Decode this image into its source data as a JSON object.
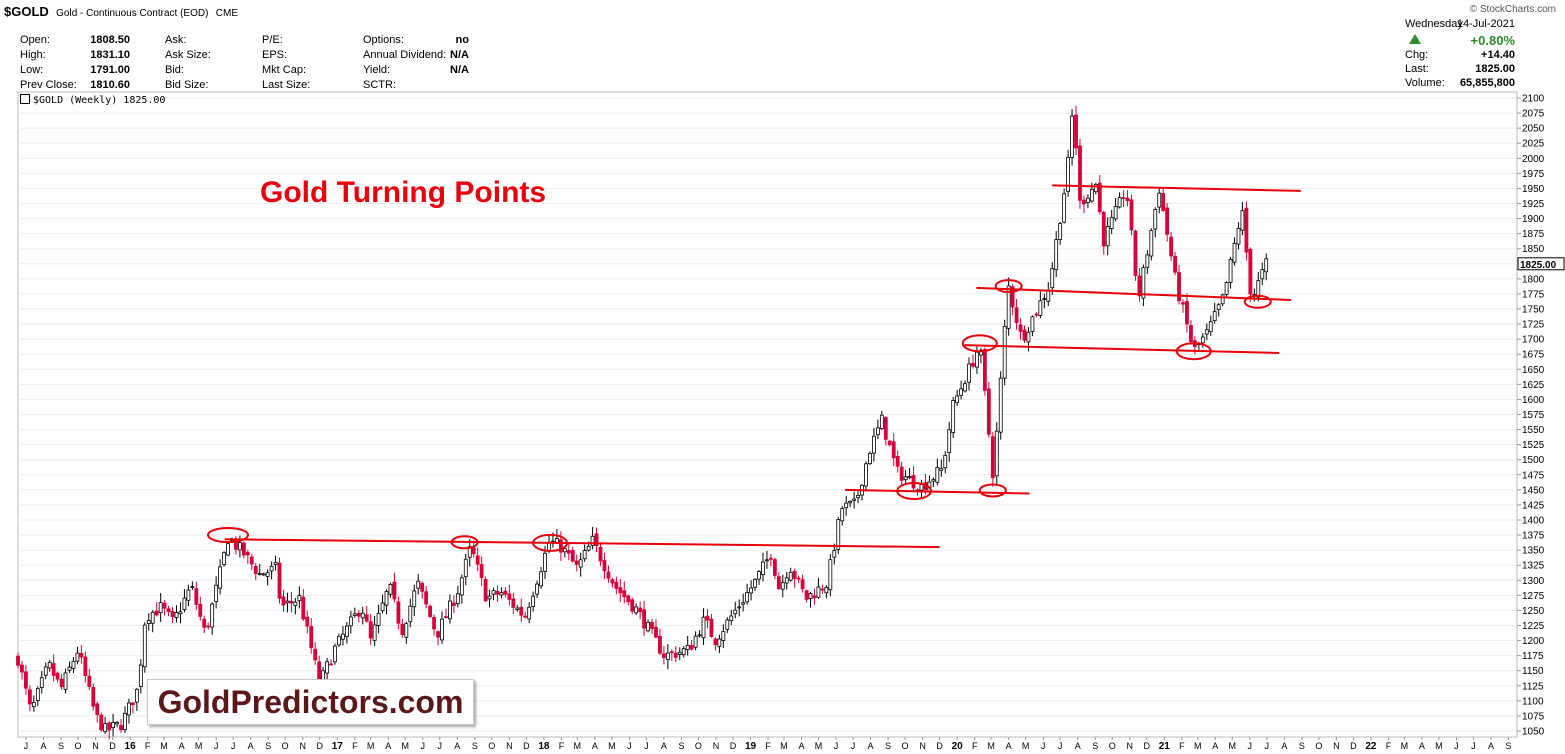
{
  "header": {
    "symbol": "$GOLD",
    "description": "Gold - Continuous Contract (EOD)",
    "exchange": "CME",
    "brand": "© StockCharts.com"
  },
  "quote": {
    "col1": [
      {
        "label": "Open:",
        "value": "1808.50"
      },
      {
        "label": "High:",
        "value": "1831.10"
      },
      {
        "label": "Low:",
        "value": "1791.00"
      },
      {
        "label": "Prev Close:",
        "value": "1810.60"
      }
    ],
    "col2": [
      "Ask:",
      "Ask Size:",
      "Bid:",
      "Bid Size:"
    ],
    "col3": [
      "P/E:",
      "EPS:",
      "Mkt Cap:",
      "Last Size:"
    ],
    "col4": [
      {
        "label": "Options:",
        "value": "no"
      },
      {
        "label": "Annual Dividend:",
        "value": "N/A"
      },
      {
        "label": "Yield:",
        "value": "N/A"
      },
      {
        "label": "SCTR:",
        "value": ""
      }
    ]
  },
  "summary": {
    "day": "Wednesday",
    "date": "14-Jul-2021",
    "change_pct": "+0.80%",
    "rows": [
      {
        "label": "Chg:",
        "value": "+14.40"
      },
      {
        "label": "Last:",
        "value": "1825.00"
      },
      {
        "label": "Volume:",
        "value": "65,855,800"
      }
    ],
    "up_color": "#2e8b2e"
  },
  "symbol_line": "$GOLD (Weekly) 1825.00",
  "annotation_title": "Gold Turning Points",
  "watermark": "GoldPredictors.com",
  "colors": {
    "up": "#000000",
    "down": "#d6003a",
    "annotation": "#e8000b",
    "grid": "#eeeeee"
  },
  "chart_data": {
    "type": "candlestick",
    "title": "$GOLD (Weekly) 1825.00",
    "frequency": "weekly",
    "ylim": [
      1040,
      2110
    ],
    "y_ticks": [
      1050,
      1075,
      1100,
      1125,
      1150,
      1175,
      1200,
      1225,
      1250,
      1275,
      1300,
      1325,
      1350,
      1375,
      1400,
      1425,
      1450,
      1475,
      1500,
      1525,
      1550,
      1575,
      1600,
      1625,
      1650,
      1675,
      1700,
      1725,
      1750,
      1775,
      1800,
      1825,
      1850,
      1875,
      1900,
      1925,
      1950,
      1975,
      2000,
      2025,
      2050,
      2075,
      2100
    ],
    "last_price": "1825.00",
    "x_labels": [
      "J",
      "A",
      "S",
      "O",
      "N",
      "D",
      "16",
      "F",
      "M",
      "A",
      "M",
      "J",
      "J",
      "A",
      "S",
      "O",
      "N",
      "D",
      "17",
      "F",
      "M",
      "A",
      "M",
      "J",
      "J",
      "A",
      "S",
      "O",
      "N",
      "D",
      "18",
      "F",
      "M",
      "A",
      "M",
      "J",
      "J",
      "A",
      "S",
      "O",
      "N",
      "D",
      "19",
      "F",
      "M",
      "A",
      "M",
      "J",
      "J",
      "A",
      "S",
      "O",
      "N",
      "D",
      "20",
      "F",
      "M",
      "A",
      "M",
      "J",
      "J",
      "A",
      "S",
      "O",
      "N",
      "D",
      "21",
      "F",
      "M",
      "A",
      "M",
      "J",
      "J",
      "A",
      "S",
      "O",
      "N",
      "D",
      "22",
      "F",
      "M",
      "A",
      "M",
      "J",
      "J",
      "A",
      "S"
    ],
    "price_path": [
      [
        "2015-07-01",
        1170
      ],
      [
        "2015-07-24",
        1080
      ],
      [
        "2015-08-24",
        1160
      ],
      [
        "2015-09-15",
        1120
      ],
      [
        "2015-10-15",
        1185
      ],
      [
        "2015-11-15",
        1075
      ],
      [
        "2015-12-03",
        1050
      ],
      [
        "2015-12-31",
        1062
      ],
      [
        "2016-01-29",
        1120
      ],
      [
        "2016-02-11",
        1240
      ],
      [
        "2016-03-10",
        1255
      ],
      [
        "2016-03-31",
        1230
      ],
      [
        "2016-05-02",
        1290
      ],
      [
        "2016-05-27",
        1210
      ],
      [
        "2016-06-24",
        1320
      ],
      [
        "2016-07-06",
        1370
      ],
      [
        "2016-07-29",
        1350
      ],
      [
        "2016-08-31",
        1310
      ],
      [
        "2016-09-30",
        1320
      ],
      [
        "2016-10-07",
        1255
      ],
      [
        "2016-11-09",
        1270
      ],
      [
        "2016-12-15",
        1128
      ],
      [
        "2017-01-10",
        1185
      ],
      [
        "2017-02-27",
        1258
      ],
      [
        "2017-03-15",
        1200
      ],
      [
        "2017-04-17",
        1290
      ],
      [
        "2017-05-09",
        1215
      ],
      [
        "2017-06-06",
        1295
      ],
      [
        "2017-07-10",
        1210
      ],
      [
        "2017-08-15",
        1280
      ],
      [
        "2017-09-08",
        1355
      ],
      [
        "2017-10-06",
        1270
      ],
      [
        "2017-10-31",
        1280
      ],
      [
        "2017-12-12",
        1240
      ],
      [
        "2018-01-25",
        1365
      ],
      [
        "2018-02-15",
        1355
      ],
      [
        "2018-03-15",
        1320
      ],
      [
        "2018-04-11",
        1365
      ],
      [
        "2018-05-21",
        1290
      ],
      [
        "2018-06-29",
        1250
      ],
      [
        "2018-08-16",
        1175
      ],
      [
        "2018-09-28",
        1185
      ],
      [
        "2018-10-26",
        1235
      ],
      [
        "2018-11-13",
        1200
      ],
      [
        "2019-01-25",
        1300
      ],
      [
        "2019-02-20",
        1345
      ],
      [
        "2019-03-07",
        1285
      ],
      [
        "2019-03-25",
        1325
      ],
      [
        "2019-04-23",
        1270
      ],
      [
        "2019-05-30",
        1295
      ],
      [
        "2019-06-25",
        1420
      ],
      [
        "2019-07-19",
        1425
      ],
      [
        "2019-08-13",
        1515
      ],
      [
        "2019-09-04",
        1565
      ],
      [
        "2019-10-01",
        1480
      ],
      [
        "2019-11-13",
        1455
      ],
      [
        "2019-12-20",
        1485
      ],
      [
        "2020-01-08",
        1590
      ],
      [
        "2020-02-24",
        1690
      ],
      [
        "2020-03-19",
        1470
      ],
      [
        "2020-04-14",
        1790
      ],
      [
        "2020-05-08",
        1700
      ],
      [
        "2020-06-26",
        1790
      ],
      [
        "2020-07-28",
        1980
      ],
      [
        "2020-08-07",
        2090
      ],
      [
        "2020-08-19",
        1925
      ],
      [
        "2020-09-18",
        1960
      ],
      [
        "2020-09-28",
        1860
      ],
      [
        "2020-11-09",
        1950
      ],
      [
        "2020-11-30",
        1765
      ],
      [
        "2021-01-06",
        1950
      ],
      [
        "2021-02-05",
        1790
      ],
      [
        "2021-03-08",
        1680
      ],
      [
        "2021-04-01",
        1710
      ],
      [
        "2021-04-30",
        1770
      ],
      [
        "2021-06-01",
        1915
      ],
      [
        "2021-06-18",
        1765
      ],
      [
        "2021-07-14",
        1825
      ]
    ],
    "trend_lines": [
      {
        "from": [
          "2016-06-30",
          1368
        ],
        "to": [
          "2019-12-15",
          1355
        ]
      },
      {
        "from": [
          "2019-07-01",
          1450
        ],
        "to": [
          "2020-05-22",
          1444
        ]
      },
      {
        "from": [
          "2020-01-28",
          1690
        ],
        "to": [
          "2021-08-06",
          1677
        ]
      },
      {
        "from": [
          "2020-02-18",
          1785
        ],
        "to": [
          "2021-08-27",
          1765
        ]
      },
      {
        "from": [
          "2020-07-01",
          1955
        ],
        "to": [
          "2021-09-13",
          1946
        ]
      }
    ],
    "circles": [
      {
        "date": "2016-07-06",
        "price": 1375,
        "size": "large"
      },
      {
        "date": "2017-08-28",
        "price": 1363,
        "size": "small"
      },
      {
        "date": "2018-01-26",
        "price": 1362,
        "size": "medium"
      },
      {
        "date": "2019-10-31",
        "price": 1448,
        "size": "medium"
      },
      {
        "date": "2020-03-18",
        "price": 1449,
        "size": "small"
      },
      {
        "date": "2020-02-24",
        "price": 1693,
        "size": "medium"
      },
      {
        "date": "2020-04-15",
        "price": 1788,
        "size": "small"
      },
      {
        "date": "2021-03-08",
        "price": 1680,
        "size": "medium"
      },
      {
        "date": "2021-06-29",
        "price": 1762,
        "size": "small"
      }
    ]
  }
}
